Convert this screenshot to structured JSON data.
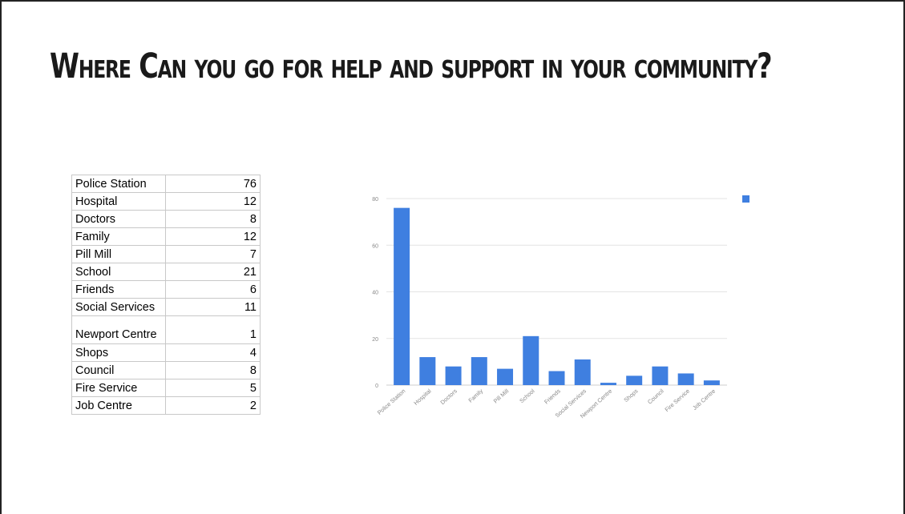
{
  "slide": {
    "title": "Where Can you go for help and support in your community?"
  },
  "table": {
    "rows": [
      {
        "category": "Police Station",
        "value": "76"
      },
      {
        "category": "Hospital",
        "value": "12"
      },
      {
        "category": "Doctors",
        "value": "8"
      },
      {
        "category": "Family",
        "value": "12"
      },
      {
        "category": "Pill Mill",
        "value": "7"
      },
      {
        "category": "School",
        "value": "21"
      },
      {
        "category": "Friends",
        "value": "6"
      },
      {
        "category": "Social Services",
        "value": "11"
      },
      {
        "category": "Newport Centre",
        "value": "1"
      },
      {
        "category": "Shops",
        "value": "4"
      },
      {
        "category": "Council",
        "value": "8"
      },
      {
        "category": "Fire Service",
        "value": "5"
      },
      {
        "category": "Job Centre",
        "value": "2"
      }
    ]
  },
  "chart_data": {
    "type": "bar",
    "categories": [
      "Police Station",
      "Hospital",
      "Doctors",
      "Family",
      "Pill Mill",
      "School",
      "Friends",
      "Social Services",
      "Newport Centre",
      "Shops",
      "Council",
      "Fire Service",
      "Job Centre"
    ],
    "values": [
      76,
      12,
      8,
      12,
      7,
      21,
      6,
      11,
      1,
      4,
      8,
      5,
      2
    ],
    "yticks": [
      "0",
      "20",
      "40",
      "60",
      "80"
    ],
    "ylim": [
      0,
      80
    ],
    "grid": true,
    "legend_position": "top-right",
    "bar_color": "#3f7fe0",
    "grid_color": "#e3e3e3",
    "label_color": "#888888"
  }
}
